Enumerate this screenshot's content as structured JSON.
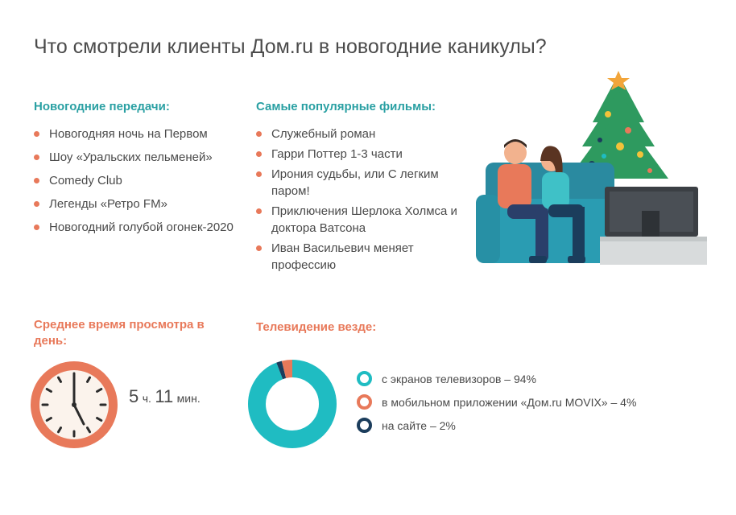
{
  "title": "Что смотрели клиенты Дом.ru в новогодние каникулы?",
  "shows": {
    "heading": "Новогодние передачи:",
    "items": [
      "Новогодняя ночь на Первом",
      "Шоу «Уральских пельменей»",
      "Comedy Club",
      "Легенды «Ретро FM»",
      "Новогодний голубой огонек-2020"
    ]
  },
  "films": {
    "heading": "Самые популярные фильмы:",
    "items": [
      "Служебный роман",
      "Гарри Поттер 1-3 части",
      "Ирония судьбы, или С легким паром!",
      "Приключения Шерлока Холмса и доктора Ватсона",
      "Иван Васильевич меняет профессию"
    ]
  },
  "avg_time": {
    "heading": "Среднее время просмотра в день:",
    "hours": "5",
    "hours_unit": "ч.",
    "minutes": "11",
    "minutes_unit": "мин."
  },
  "tv_everywhere": {
    "heading": "Телевидение везде:",
    "segments": [
      {
        "label": "с экранов телевизоров – 94%",
        "value": 94,
        "color": "#1fbcc2"
      },
      {
        "label": "в мобильном приложении «Дом.ru MOVIX» – 4%",
        "value": 4,
        "color": "#e8795a"
      },
      {
        "label": "на сайте – 2%",
        "value": 2,
        "color": "#1b3d5c"
      }
    ]
  },
  "colors": {
    "teal_heading": "#2aa0a3",
    "orange_heading": "#e8795a",
    "bullet": "#e8795a"
  },
  "icons": [
    "christmas-tree-icon",
    "couple-on-sofa-icon",
    "tv-icon",
    "clock-icon"
  ]
}
